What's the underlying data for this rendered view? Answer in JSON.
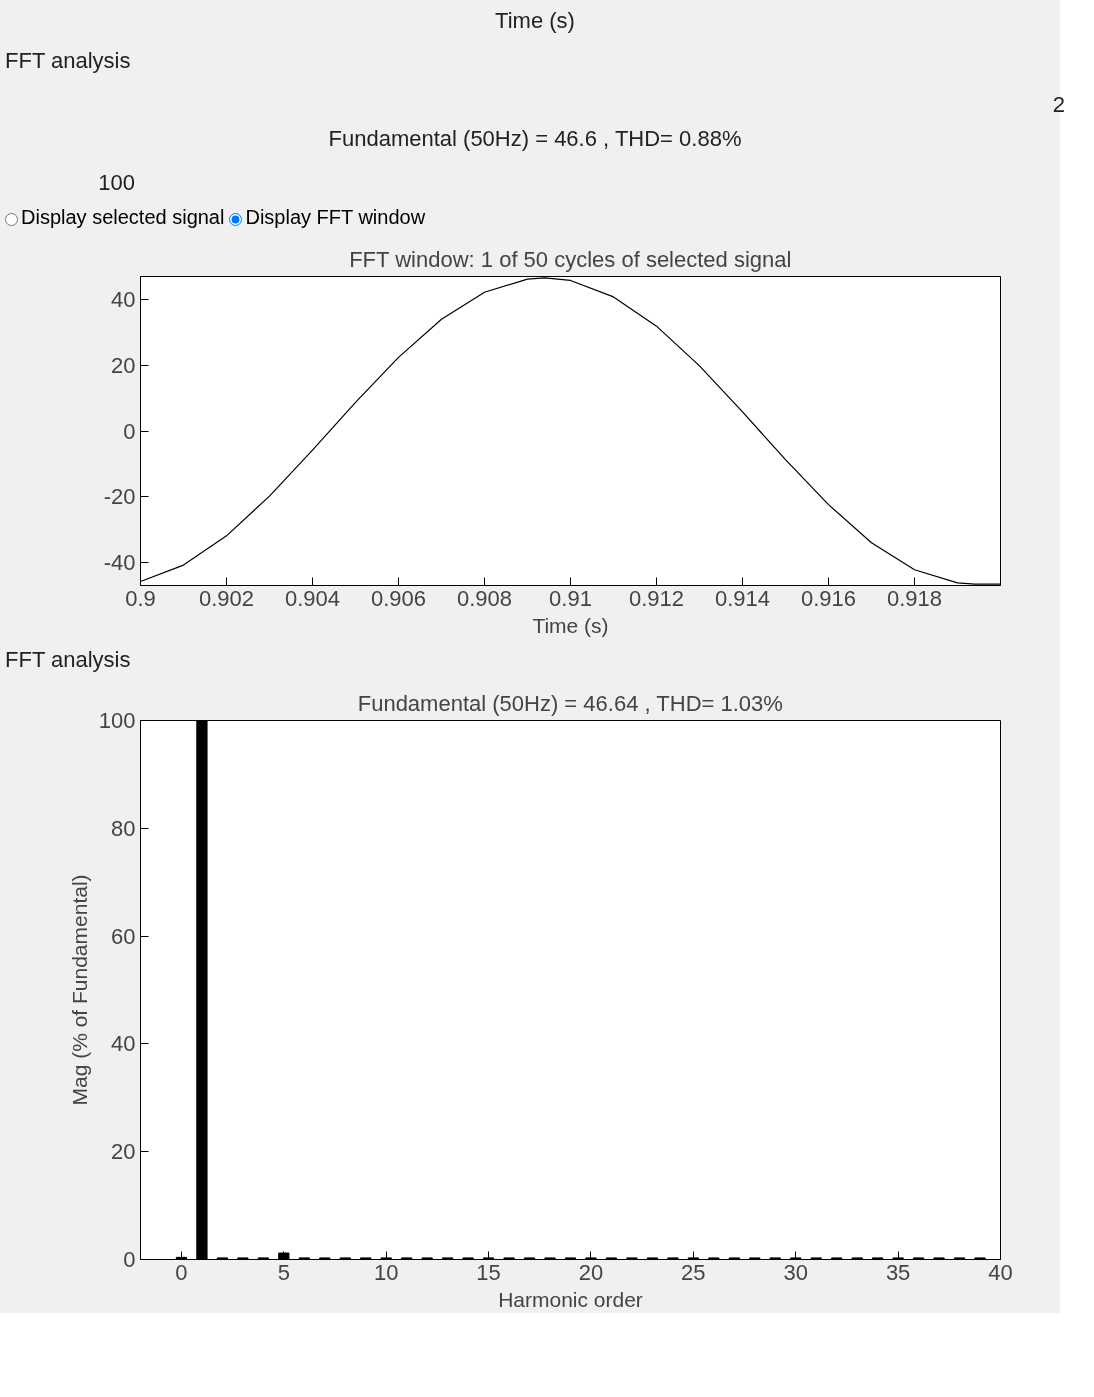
{
  "chart_data": [
    {
      "type": "other",
      "title": "Fundamental (50Hz) = 46.6 , THD= 0.88%",
      "annotations": [
        "Time (s)",
        "FFT analysis",
        "2",
        "100"
      ]
    },
    {
      "type": "line",
      "title": "FFT window: 1 of 50 cycles of selected signal",
      "xlabel": "Time (s)",
      "annotations": [
        "Display selected signal",
        "Display FFT window"
      ],
      "x": [
        0.9,
        0.901,
        0.902,
        0.903,
        0.904,
        0.905,
        0.906,
        0.907,
        0.908,
        0.909,
        0.9094,
        0.91,
        0.911,
        0.912,
        0.913,
        0.914,
        0.915,
        0.916,
        0.917,
        0.918,
        0.919,
        0.9194,
        0.92
      ],
      "series": [
        {
          "color": "#000000",
          "values": [
            -45.8,
            -40.8,
            -31.9,
            -19.8,
            -5.8,
            8.7,
            22.4,
            34.0,
            42.2,
            46.2,
            46.6,
            45.8,
            40.8,
            31.9,
            19.8,
            5.8,
            -8.7,
            -22.4,
            -34.0,
            -42.2,
            -46.2,
            -46.6,
            -46.6
          ]
        }
      ],
      "xlim": [
        0.9,
        0.92
      ],
      "ylim": [
        -47,
        47
      ],
      "xticks": [
        0.9,
        0.902,
        0.904,
        0.906,
        0.908,
        0.91,
        0.912,
        0.914,
        0.916,
        0.918
      ],
      "yticks": [
        -40,
        -20,
        0,
        20,
        40
      ],
      "grid": false,
      "marker": "none",
      "line_style": "solid"
    },
    {
      "type": "bar",
      "title": "Fundamental (50Hz) = 46.64 , THD= 1.03%",
      "xlabel": "Harmonic order",
      "ylabel": "Mag (% of Fundamental)",
      "annotations": [
        "FFT analysis"
      ],
      "x": [
        0,
        1,
        2,
        3,
        4,
        5,
        6,
        7,
        8,
        9,
        10,
        11,
        12,
        13,
        14,
        15,
        16,
        17,
        18,
        19,
        20,
        21,
        22,
        23,
        24,
        25,
        26,
        27,
        28,
        29,
        30,
        31,
        32,
        33,
        34,
        35,
        36,
        37,
        38,
        39
      ],
      "series": [
        {
          "color": "#000000",
          "values": [
            0.4,
            100,
            0.3,
            0.3,
            0.3,
            1.2,
            0.3,
            0.3,
            0.3,
            0.3,
            0.3,
            0.3,
            0.3,
            0.3,
            0.3,
            0.3,
            0.3,
            0.3,
            0.3,
            0.3,
            0.3,
            0.3,
            0.3,
            0.3,
            0.3,
            0.3,
            0.3,
            0.3,
            0.3,
            0.3,
            0.3,
            0.3,
            0.3,
            0.3,
            0.3,
            0.3,
            0.3,
            0.3,
            0.3,
            0.3
          ]
        }
      ],
      "xlim": [
        -2,
        40
      ],
      "ylim": [
        0,
        100
      ],
      "xticks": [
        0,
        5,
        10,
        15,
        20,
        25,
        30,
        35,
        40
      ],
      "yticks": [
        0,
        20,
        40,
        60,
        80,
        100
      ],
      "grid": false
    }
  ]
}
